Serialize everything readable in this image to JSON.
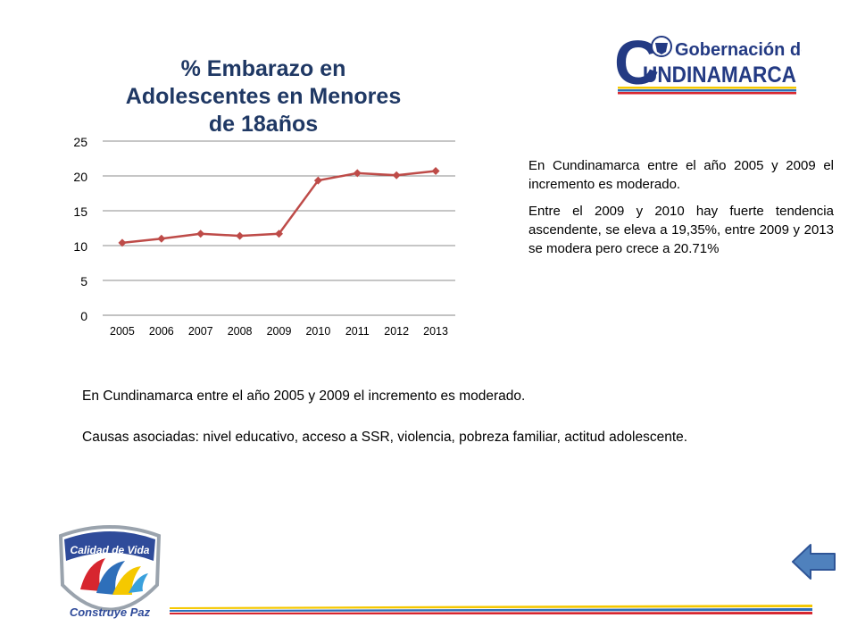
{
  "header": {
    "logo": {
      "letter_c": "C",
      "line1": "Gobernación de",
      "line2": "UNDINAMARCA",
      "colors": {
        "navy": "#233a83",
        "yellow": "#f5c800",
        "blue": "#2e6fba",
        "red": "#d7262f"
      }
    }
  },
  "chart_data": {
    "type": "line",
    "title": "% Embarazo en Adolescentes en Menores de 18años",
    "title_lines": [
      "% Embarazo en",
      "Adolescentes en Menores",
      "de 18años"
    ],
    "categories": [
      "2005",
      "2006",
      "2007",
      "2008",
      "2009",
      "2010",
      "2011",
      "2012",
      "2013"
    ],
    "series": [
      {
        "values": [
          10.4,
          11.0,
          11.7,
          11.4,
          11.7,
          19.35,
          20.4,
          20.1,
          20.71
        ],
        "color": "#be4b48"
      }
    ],
    "ylim": [
      0,
      25
    ],
    "yticks": [
      "0",
      "5",
      "10",
      "15",
      "20",
      "25"
    ],
    "grid": true,
    "xlabel": "",
    "ylabel": ""
  },
  "side_text": {
    "p1": "En Cundinamarca entre el año 2005 y 2009 el incremento es moderado.",
    "p2": "Entre el 2009 y 2010 hay fuerte tendencia ascendente, se eleva a 19,35%, entre 2009 y 2013 se modera pero crece a 20.71%"
  },
  "bottom_text": {
    "p1": "En Cundinamarca entre el año 2005 y 2009 el incremento es moderado.",
    "p2": "Causas asociadas: nivel educativo, acceso a SSR, violencia, pobreza familiar, actitud adolescente."
  },
  "footer": {
    "calidad_logo": {
      "line1": "Calidad de Vida",
      "line2": "Construye Paz"
    },
    "back_icon": "left-arrow-icon",
    "stripe_colors": [
      "#f5c800",
      "#2e6fba",
      "#d7262f"
    ]
  }
}
